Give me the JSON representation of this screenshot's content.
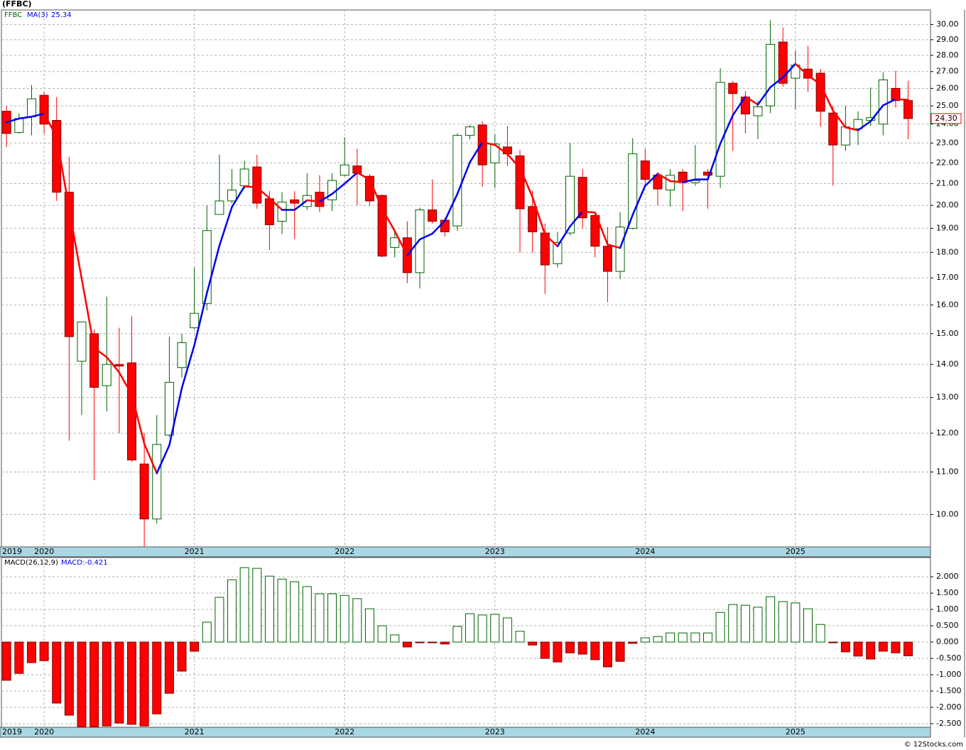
{
  "chart_data": [
    {
      "type": "candlestick",
      "title": "(FFBC)",
      "symbol": "FFBC",
      "log_scale": true,
      "grid": true,
      "up_color": "#006400",
      "down_color": "#ff0000",
      "categories": [
        "2019",
        null,
        null,
        "2020",
        null,
        null,
        null,
        null,
        null,
        null,
        null,
        null,
        null,
        null,
        null,
        "2021",
        null,
        null,
        null,
        null,
        null,
        null,
        null,
        null,
        null,
        null,
        null,
        "2022",
        null,
        null,
        null,
        null,
        null,
        null,
        null,
        null,
        null,
        null,
        null,
        "2023",
        null,
        null,
        null,
        null,
        null,
        null,
        null,
        null,
        null,
        null,
        null,
        "2024",
        null,
        null,
        null,
        null,
        null,
        null,
        null,
        null,
        null,
        null,
        null,
        "2025",
        null,
        null,
        null,
        null,
        null,
        null,
        null,
        null,
        null
      ],
      "open": [
        24.7,
        23.55,
        24.4,
        25.6,
        24.2,
        20.6,
        14.1,
        15.0,
        13.35,
        14.0,
        14.05,
        11.2,
        9.9,
        11.95,
        13.9,
        15.2,
        16.05,
        19.6,
        20.2,
        20.9,
        21.8,
        20.3,
        19.3,
        20.25,
        19.95,
        20.6,
        20.25,
        21.4,
        21.85,
        21.35,
        20.45,
        18.2,
        18.6,
        17.2,
        19.8,
        19.35,
        19.1,
        23.4,
        23.95,
        22.0,
        22.8,
        22.35,
        19.95,
        18.8,
        17.55,
        18.8,
        21.3,
        19.55,
        18.25,
        17.25,
        19.0,
        22.1,
        21.4,
        20.7,
        21.55,
        21.05,
        21.55,
        21.35,
        26.3,
        25.5,
        24.45,
        25.0,
        28.85,
        26.6,
        27.15,
        26.9,
        24.6,
        22.9,
        23.75,
        24.2,
        24.0,
        26.0,
        25.3
      ],
      "high": [
        25.0,
        24.6,
        26.2,
        25.8,
        25.5,
        22.3,
        15.4,
        15.15,
        16.3,
        15.2,
        15.6,
        12.0,
        12.5,
        14.9,
        15.0,
        17.4,
        20.0,
        22.4,
        21.7,
        22.1,
        22.4,
        20.65,
        20.6,
        20.65,
        21.5,
        21.4,
        21.5,
        23.3,
        22.7,
        21.45,
        20.5,
        18.9,
        19.3,
        19.9,
        21.2,
        19.45,
        23.5,
        23.95,
        24.15,
        23.45,
        23.9,
        22.65,
        20.65,
        19.2,
        18.85,
        23.0,
        21.7,
        19.65,
        19.05,
        19.7,
        23.25,
        22.7,
        21.55,
        21.7,
        21.7,
        22.9,
        21.7,
        27.2,
        26.45,
        25.85,
        25.3,
        30.3,
        29.8,
        28.3,
        28.6,
        27.15,
        25.0,
        25.0,
        24.7,
        26.05,
        26.95,
        27.05,
        26.45
      ],
      "low": [
        22.8,
        23.5,
        23.4,
        23.5,
        20.2,
        11.8,
        12.5,
        10.8,
        12.6,
        12.0,
        11.25,
        9.3,
        9.8,
        11.9,
        13.6,
        15.15,
        15.8,
        19.6,
        20.1,
        20.75,
        19.85,
        18.1,
        18.75,
        18.55,
        19.8,
        19.7,
        19.75,
        21.35,
        20.0,
        20.0,
        17.8,
        17.8,
        16.8,
        16.6,
        19.2,
        18.65,
        18.9,
        23.2,
        20.85,
        20.8,
        21.85,
        18.0,
        18.0,
        16.4,
        17.4,
        18.7,
        19.0,
        17.8,
        16.1,
        16.95,
        18.95,
        20.95,
        20.0,
        19.95,
        19.75,
        20.9,
        19.85,
        20.8,
        22.6,
        23.5,
        23.2,
        24.6,
        26.1,
        24.8,
        25.8,
        23.85,
        20.9,
        22.6,
        22.9,
        23.9,
        23.4,
        24.9,
        23.2
      ],
      "close": [
        23.5,
        24.3,
        25.4,
        24.0,
        20.6,
        14.9,
        15.4,
        13.3,
        14.0,
        13.95,
        11.3,
        9.9,
        11.7,
        13.45,
        14.7,
        15.7,
        18.9,
        20.2,
        20.7,
        21.7,
        20.1,
        19.15,
        20.15,
        20.1,
        20.45,
        19.95,
        21.15,
        21.9,
        21.5,
        20.2,
        17.85,
        18.6,
        17.2,
        19.8,
        19.3,
        18.85,
        23.4,
        23.85,
        21.9,
        22.95,
        22.45,
        19.85,
        18.85,
        17.5,
        18.4,
        21.35,
        19.45,
        18.25,
        17.25,
        19.05,
        22.45,
        21.2,
        20.75,
        21.4,
        21.05,
        21.15,
        21.4,
        26.35,
        25.7,
        24.55,
        24.95,
        28.7,
        26.3,
        27.4,
        26.6,
        24.7,
        22.9,
        23.85,
        24.25,
        24.35,
        26.5,
        25.3,
        24.3
      ],
      "series": [
        {
          "name": "MA(3)",
          "color": "#0000ee",
          "down_color": "#ff0000",
          "values": [
            24.1,
            24.3,
            24.4,
            24.57,
            23.33,
            19.83,
            16.97,
            14.53,
            14.23,
            13.75,
            13.08,
            11.72,
            10.97,
            11.68,
            13.28,
            14.62,
            16.43,
            18.27,
            19.93,
            20.87,
            20.83,
            20.32,
            19.8,
            19.8,
            20.23,
            20.17,
            20.52,
            21.0,
            21.52,
            21.2,
            19.85,
            18.88,
            17.88,
            18.53,
            18.77,
            19.32,
            20.52,
            22.03,
            23.05,
            22.9,
            22.43,
            21.75,
            20.38,
            18.73,
            18.25,
            19.08,
            19.73,
            19.68,
            18.32,
            18.18,
            19.58,
            20.9,
            21.47,
            21.12,
            21.07,
            21.2,
            21.2,
            22.97,
            24.48,
            25.53,
            25.07,
            26.07,
            26.65,
            27.47,
            26.77,
            26.23,
            24.73,
            23.82,
            23.67,
            24.15,
            25.03,
            25.38,
            25.34
          ]
        }
      ],
      "last_price": {
        "value": 24.3,
        "label": "24.30"
      },
      "ylim": [
        9.3,
        31.0
      ],
      "yticks": [
        {
          "value": 10,
          "label": "10.00"
        },
        {
          "value": 11,
          "label": "11.00"
        },
        {
          "value": 12,
          "label": "12.00"
        },
        {
          "value": 13,
          "label": "13.00"
        },
        {
          "value": 14,
          "label": "14.00"
        },
        {
          "value": 15,
          "label": "15.00"
        },
        {
          "value": 16,
          "label": "16.00"
        },
        {
          "value": 17,
          "label": "17.00"
        },
        {
          "value": 18,
          "label": "18.00"
        },
        {
          "value": 19,
          "label": "19.00"
        },
        {
          "value": 20,
          "label": "20.00"
        },
        {
          "value": 21,
          "label": "21.00"
        },
        {
          "value": 22,
          "label": "22.00"
        },
        {
          "value": 23,
          "label": "23.00"
        },
        {
          "value": 24,
          "label": "24.00"
        },
        {
          "value": 25,
          "label": "25.00"
        },
        {
          "value": 26,
          "label": "26.00"
        },
        {
          "value": 27,
          "label": "27.00"
        },
        {
          "value": 28,
          "label": "28.00"
        },
        {
          "value": 29,
          "label": "29.00"
        },
        {
          "value": 30,
          "label": "30.00"
        }
      ]
    },
    {
      "type": "histogram_bar",
      "indicator": "MACD(26,12,9)",
      "value_label": "MACD:-0.421",
      "grid": true,
      "up_color": "#006400",
      "down_color": "#ff0000",
      "categories": [
        "2019",
        null,
        null,
        "2020",
        null,
        null,
        null,
        null,
        null,
        null,
        null,
        null,
        null,
        null,
        null,
        "2021",
        null,
        null,
        null,
        null,
        null,
        null,
        null,
        null,
        null,
        null,
        null,
        "2022",
        null,
        null,
        null,
        null,
        null,
        null,
        null,
        null,
        null,
        null,
        null,
        "2023",
        null,
        null,
        null,
        null,
        null,
        null,
        null,
        null,
        null,
        null,
        null,
        "2024",
        null,
        null,
        null,
        null,
        null,
        null,
        null,
        null,
        null,
        null,
        null,
        "2025",
        null,
        null,
        null,
        null,
        null,
        null,
        null,
        null,
        null
      ],
      "values": [
        -1.17,
        -0.96,
        -0.63,
        -0.57,
        -1.87,
        -2.24,
        -2.6,
        -2.6,
        -2.57,
        -2.48,
        -2.52,
        -2.57,
        -2.2,
        -1.57,
        -0.89,
        -0.28,
        0.61,
        1.37,
        1.91,
        2.28,
        2.26,
        2.02,
        1.93,
        1.85,
        1.7,
        1.48,
        1.48,
        1.43,
        1.33,
        1.02,
        0.5,
        0.22,
        -0.15,
        -0.02,
        -0.02,
        -0.06,
        0.48,
        0.87,
        0.83,
        0.85,
        0.74,
        0.33,
        -0.09,
        -0.5,
        -0.61,
        -0.33,
        -0.37,
        -0.54,
        -0.76,
        -0.59,
        -0.04,
        0.13,
        0.17,
        0.28,
        0.28,
        0.28,
        0.28,
        0.91,
        1.15,
        1.13,
        1.07,
        1.39,
        1.24,
        1.2,
        1.02,
        0.54,
        -0.02,
        -0.3,
        -0.43,
        -0.52,
        -0.28,
        -0.33,
        -0.421
      ],
      "ylim": [
        -2.61,
        2.59
      ],
      "yticks": [
        {
          "value": 2,
          "label": "2.000"
        },
        {
          "value": 1.5,
          "label": "1.500"
        },
        {
          "value": 1,
          "label": "1.000"
        },
        {
          "value": 0.5,
          "label": "0.500"
        },
        {
          "value": 0,
          "label": "0.000"
        },
        {
          "value": -0.5,
          "label": "-0.500"
        },
        {
          "value": -1,
          "label": "-1.000"
        },
        {
          "value": -1.5,
          "label": "-1.500"
        },
        {
          "value": -2,
          "label": "-2.000"
        },
        {
          "value": -2.5,
          "label": "-2.500"
        }
      ]
    }
  ],
  "watermark": "© 12Stocks.com"
}
